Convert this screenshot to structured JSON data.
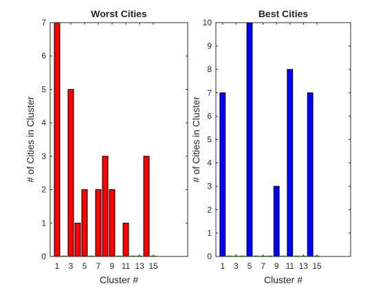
{
  "chart_data": [
    {
      "type": "bar",
      "title": "Worst Cities",
      "xlabel": "Cluster #",
      "ylabel": "# of Cities in Cluster",
      "x": [
        1,
        2,
        3,
        4,
        5,
        6,
        7,
        8,
        9,
        10,
        11,
        12,
        13,
        14,
        15
      ],
      "values": [
        7,
        0,
        5,
        1,
        2,
        0,
        2,
        3,
        2,
        0,
        1,
        0,
        0,
        3,
        0
      ],
      "xticks": [
        "1",
        "3",
        "5",
        "7",
        "9",
        "11",
        "13",
        "15"
      ],
      "yticks": [
        "0",
        "1",
        "2",
        "3",
        "4",
        "5",
        "6",
        "7"
      ],
      "xlim": [
        0,
        20
      ],
      "ylim": [
        0,
        7
      ],
      "bar_color": "#ff0000",
      "grid": false
    },
    {
      "type": "bar",
      "title": "Best Cities",
      "xlabel": "Cluster #",
      "ylabel": "# of Cities in Cluster",
      "x": [
        1,
        2,
        3,
        4,
        5,
        6,
        7,
        8,
        9,
        10,
        11,
        12,
        13,
        14,
        15
      ],
      "values": [
        7,
        0,
        0,
        0,
        10,
        0,
        0,
        0,
        3,
        0,
        8,
        0,
        0,
        7,
        0
      ],
      "xticks": [
        "1",
        "3",
        "5",
        "7",
        "9",
        "11",
        "13",
        "15"
      ],
      "yticks": [
        "0",
        "1",
        "2",
        "3",
        "4",
        "5",
        "6",
        "7",
        "8",
        "9",
        "10"
      ],
      "xlim": [
        0,
        20
      ],
      "ylim": [
        0,
        10
      ],
      "bar_color": "#0000ff",
      "grid": false
    }
  ]
}
